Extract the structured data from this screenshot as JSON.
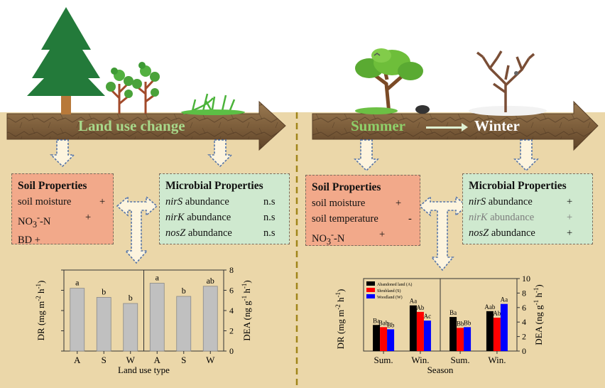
{
  "left_panel": {
    "arrow_label": "Land use change",
    "soil_box": {
      "title": "Soil Properties",
      "rows": [
        {
          "name": "soil moisture",
          "value": "+"
        },
        {
          "name": "NO3-N",
          "name_html": "NO<sub>3</sub><sup>-</sup>-N",
          "value": "+"
        },
        {
          "name": "BD",
          "value": "+"
        }
      ]
    },
    "microbial_box": {
      "title": "Microbial Properties",
      "rows": [
        {
          "gene": "nirS",
          "rest": "abundance",
          "value": "n.s"
        },
        {
          "gene": "nirK",
          "rest": "abundance",
          "value": "n.s"
        },
        {
          "gene": "nosZ",
          "rest": "abundance",
          "value": "n.s"
        }
      ]
    }
  },
  "right_panel": {
    "arrow_label_from": "Summer",
    "arrow_label_to": "Winter",
    "soil_box": {
      "title": "Soil Properties",
      "rows": [
        {
          "name": "soil moisture",
          "value": "+"
        },
        {
          "name": "soil temperature",
          "value": "-"
        },
        {
          "name": "NO3-N",
          "name_html": "NO<sub>3</sub><sup>-</sup>-N",
          "value": "+"
        }
      ]
    },
    "microbial_box": {
      "title": "Microbial Properties",
      "rows": [
        {
          "gene": "nirS",
          "rest": "abundance",
          "value": "+"
        },
        {
          "gene": "nirK",
          "rest": "abundance",
          "value": "+",
          "muted": true
        },
        {
          "gene": "nosZ",
          "rest": "abundance",
          "value": "+"
        }
      ]
    }
  },
  "colors": {
    "soil_box": "#f2a98a",
    "microbial_box": "#cfe9cf",
    "bars_left": "#c0c0c0",
    "abandoned": "#000000",
    "shrubland": "#ff0000",
    "woodland": "#0000ff",
    "summer_label": "#8fd06a",
    "parchment": "#eedcb0"
  },
  "chart_data": [
    {
      "type": "bar",
      "title": "",
      "xlabel": "Land use type",
      "ylabel_left": "DR (mg m-2 h-1)",
      "ylabel_right": "DEA (ng g-1 h-1)",
      "groups": [
        {
          "name": "DR",
          "categories": [
            "A",
            "S",
            "W"
          ],
          "values": [
            0.31,
            0.265,
            0.235
          ],
          "letters": [
            "a",
            "b",
            "b"
          ]
        },
        {
          "name": "DEA",
          "categories": [
            "A",
            "S",
            "W"
          ],
          "values": [
            6.7,
            5.4,
            6.4
          ],
          "letters": [
            "a",
            "b",
            "ab"
          ]
        }
      ],
      "ylim_left": [
        0,
        0.4
      ],
      "ylim_right": [
        0,
        8
      ],
      "yticks_left": [
        0.0,
        0.1,
        0.2,
        0.3,
        0.4
      ],
      "yticks_left_labels": [
        "",
        "",
        "",
        "",
        ""
      ],
      "yticks_right": [
        0,
        2,
        4,
        6,
        8
      ],
      "yticks_right_labels": [
        "0",
        "2",
        "4",
        "6",
        "8"
      ]
    },
    {
      "type": "bar",
      "title": "",
      "xlabel": "Season",
      "ylabel_left": "DR (mg m-2 h-1)",
      "ylabel_right": "DEA (ng g-1 h-1)",
      "legend": [
        "Abandoned land (A)",
        "Shrubland (S)",
        "Woodland (W)"
      ],
      "legend_position": "top-left",
      "panels": [
        {
          "name": "DR",
          "categories": [
            "Sum.",
            "Win."
          ],
          "series": [
            {
              "name": "Abandoned land (A)",
              "values": [
                0.18,
                0.315
              ],
              "letters": [
                "Ba",
                "Aa"
              ]
            },
            {
              "name": "Shrubland (S)",
              "values": [
                0.165,
                0.27
              ],
              "letters": [
                "Bab",
                "Ab"
              ]
            },
            {
              "name": "Woodland (W)",
              "values": [
                0.15,
                0.21
              ],
              "letters": [
                "Bb",
                "Ac"
              ]
            }
          ]
        },
        {
          "name": "DEA",
          "categories": [
            "Sum.",
            "Win."
          ],
          "series": [
            {
              "name": "Abandoned land (A)",
              "values": [
                4.7,
                5.5
              ],
              "letters": [
                "Ba",
                "Aab"
              ]
            },
            {
              "name": "Shrubland (S)",
              "values": [
                3.2,
                4.6
              ],
              "letters": [
                "Bb",
                "Ab"
              ]
            },
            {
              "name": "Woodland (W)",
              "values": [
                3.3,
                6.5
              ],
              "letters": [
                "Bb",
                "Aa"
              ]
            }
          ]
        }
      ],
      "ylim_left": [
        0,
        0.5
      ],
      "ylim_right": [
        0,
        10
      ],
      "yticks_right": [
        0,
        2,
        4,
        6,
        8,
        10
      ],
      "yticks_right_labels": [
        "0",
        "2",
        "4",
        "6",
        "8",
        "10"
      ]
    }
  ]
}
